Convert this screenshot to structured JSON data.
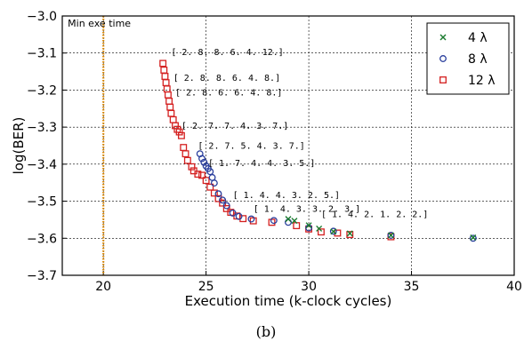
{
  "chart_data": {
    "type": "scatter",
    "xlabel": "Execution time (k-clock cycles)",
    "ylabel": "log(BER)",
    "xlim": [
      18,
      40
    ],
    "ylim": [
      -3.7,
      -3.0
    ],
    "xticks": [
      "20",
      "25",
      "30",
      "35",
      "40"
    ],
    "yticks": [
      "-3.0",
      "-3.1",
      "-3.2",
      "-3.3",
      "-3.4",
      "-3.5",
      "-3.6",
      "-3.7"
    ],
    "grid": true,
    "legend_position": "top-right",
    "vline": {
      "x": 20,
      "label": "Min exe time",
      "color": "#e08a00"
    },
    "series": [
      {
        "name": "4 λ",
        "marker": "x",
        "color": "#1a7a2e",
        "x": [
          29.0,
          29.3,
          30.0,
          30.5,
          31.2,
          32.0,
          34.0,
          38.0
        ],
        "y": [
          -3.548,
          -3.553,
          -3.565,
          -3.574,
          -3.582,
          -3.587,
          -3.592,
          -3.598
        ]
      },
      {
        "name": "8 λ",
        "marker": "o",
        "color": "#2a3f9d",
        "x": [
          24.7,
          24.8,
          24.9,
          25.0,
          25.1,
          25.2,
          25.3,
          25.4,
          25.6,
          25.8,
          26.0,
          26.3,
          26.6,
          27.2,
          28.3,
          29.0,
          30.0,
          31.2,
          34.0,
          38.0
        ],
        "y": [
          -3.372,
          -3.385,
          -3.395,
          -3.405,
          -3.412,
          -3.42,
          -3.436,
          -3.451,
          -3.48,
          -3.497,
          -3.512,
          -3.532,
          -3.541,
          -3.548,
          -3.552,
          -3.557,
          -3.572,
          -3.581,
          -3.592,
          -3.6
        ]
      },
      {
        "name": "12 λ",
        "marker": "s",
        "color": "#d42020",
        "x": [
          22.9,
          22.95,
          23.0,
          23.05,
          23.1,
          23.15,
          23.2,
          23.25,
          23.3,
          23.4,
          23.5,
          23.6,
          23.7,
          23.8,
          23.9,
          24.0,
          24.1,
          24.3,
          24.4,
          24.6,
          24.8,
          25.0,
          25.2,
          25.4,
          25.6,
          25.8,
          26.0,
          26.2,
          26.5,
          26.8,
          27.3,
          28.2,
          29.4,
          30.0,
          30.6,
          31.4,
          32.0,
          34.0
        ],
        "y": [
          -3.128,
          -3.146,
          -3.163,
          -3.18,
          -3.197,
          -3.213,
          -3.23,
          -3.246,
          -3.263,
          -3.28,
          -3.296,
          -3.306,
          -3.313,
          -3.323,
          -3.355,
          -3.372,
          -3.39,
          -3.407,
          -3.418,
          -3.427,
          -3.43,
          -3.444,
          -3.462,
          -3.478,
          -3.493,
          -3.505,
          -3.52,
          -3.53,
          -3.54,
          -3.547,
          -3.553,
          -3.557,
          -3.566,
          -3.575,
          -3.583,
          -3.586,
          -3.59,
          -3.596
        ]
      }
    ],
    "annotations": [
      {
        "text": "[ 2.  8.  8.  6.  4. 12.]",
        "x": 23.3,
        "y": -3.105
      },
      {
        "text": "[ 2.  8.  8.  6.  4.  8.]",
        "x": 23.4,
        "y": -3.175
      },
      {
        "text": "[ 2.  8.  6.  6.  4.  8.]",
        "x": 23.5,
        "y": -3.215
      },
      {
        "text": "[ 2.  7.  7.  4.  3.  7.]",
        "x": 23.8,
        "y": -3.305
      },
      {
        "text": "[ 2.  7.  5.  4.  3.  7.]",
        "x": 24.6,
        "y": -3.358
      },
      {
        "text": "[ 1.  7.  4.  4.  3.  5.]",
        "x": 25.1,
        "y": -3.405
      },
      {
        "text": "[ 1.  4.  4.  3.  2.  5.]",
        "x": 26.3,
        "y": -3.492
      },
      {
        "text": "[ 1.  4.  3.  3.  2.  3.]",
        "x": 27.3,
        "y": -3.528
      },
      {
        "text": "[ 1.  4.  2.  1.  2.  2.]",
        "x": 30.6,
        "y": -3.543
      }
    ]
  },
  "caption": "(b)"
}
